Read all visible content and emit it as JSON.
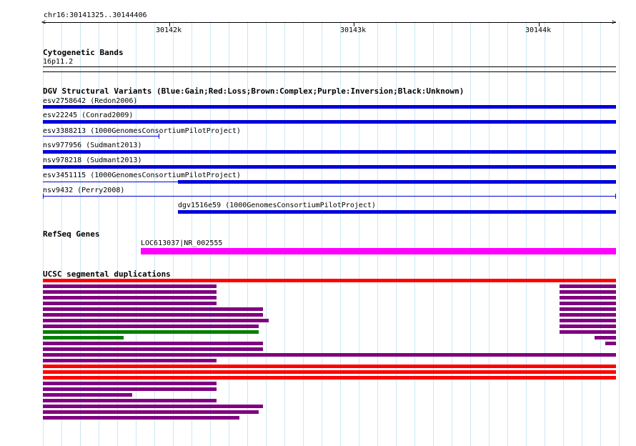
{
  "region": "chr16:30141325..30144406",
  "ruler": {
    "labels": [
      "30142k",
      "30143k",
      "30144k"
    ]
  },
  "tracks": {
    "cytoband": {
      "title": "Cytogenetic Bands",
      "band": "16p11.2"
    },
    "dgv": {
      "title": "DGV Structural Variants (Blue:Gain;Red:Loss;Brown:Complex;Purple:Inversion;Black:Unknown)",
      "items": [
        "esv2758642 (Redon2006)",
        "esv22245 (Conrad2009)",
        "esv3388213 (1000GenomesConsortiumPilotProject)",
        "nsv977956 (Sudmant2013)",
        "nsv978218 (Sudmant2013)",
        "esv3451115 (1000GenomesConsortiumPilotProject)",
        "nsv9432 (Perry2008)",
        "dgv1516e59 (1000GenomesConsortiumPilotProject)"
      ]
    },
    "refseq": {
      "title": "RefSeq Genes",
      "gene": "LOC613037|NR_002555"
    },
    "segdups": {
      "title": "UCSC segmental duplications"
    }
  },
  "colors": {
    "gain": "#0000dd",
    "gene": "#ff00ff",
    "segdup_red": "#ff0000",
    "segdup_purple": "#800080",
    "segdup_green": "#008000",
    "grid": "#cce8f4"
  }
}
